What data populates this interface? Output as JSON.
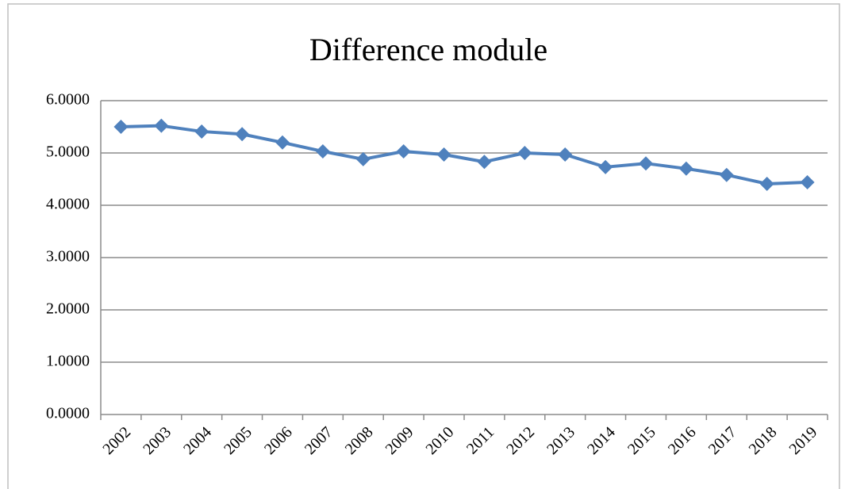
{
  "chart_data": {
    "type": "line",
    "title": "Difference module",
    "categories": [
      "2002",
      "2003",
      "2004",
      "2005",
      "2006",
      "2007",
      "2008",
      "2009",
      "2010",
      "2011",
      "2012",
      "2013",
      "2014",
      "2015",
      "2016",
      "2017",
      "2018",
      "2019"
    ],
    "series": [
      {
        "name": "Difference module",
        "color": "#4f81bd",
        "values": [
          5.5,
          5.52,
          5.41,
          5.36,
          5.2,
          5.03,
          4.88,
          5.03,
          4.97,
          4.83,
          5.0,
          4.97,
          4.73,
          4.8,
          4.7,
          4.58,
          4.41,
          4.44
        ]
      }
    ],
    "ylim": [
      0,
      6
    ],
    "yticks": [
      {
        "value": 0,
        "label": "0.0000"
      },
      {
        "value": 1,
        "label": "1.0000"
      },
      {
        "value": 2,
        "label": "2.0000"
      },
      {
        "value": 3,
        "label": "3.0000"
      },
      {
        "value": 4,
        "label": "4.0000"
      },
      {
        "value": 5,
        "label": "5.0000"
      },
      {
        "value": 6,
        "label": "6.0000"
      }
    ],
    "grid": true
  }
}
